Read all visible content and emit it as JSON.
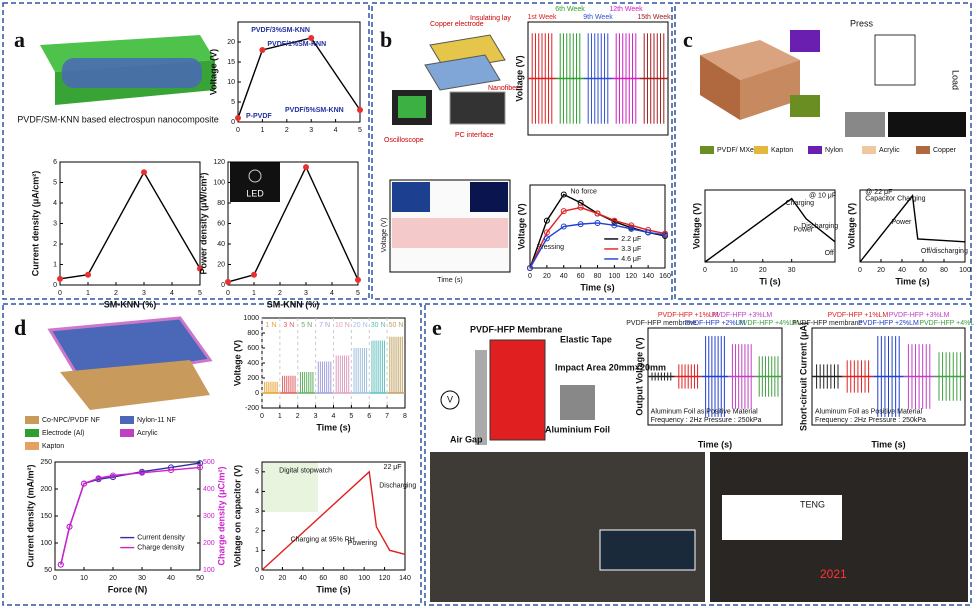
{
  "panels": [
    "a",
    "b",
    "c",
    "d",
    "e"
  ],
  "texts": {
    "a_caption": "PVDF/SM-KNN based electrospun nanocomposite",
    "a_led": "LED",
    "b_copper": "Copper electrode",
    "b_insulating": "Insulating lay",
    "b_nanofibers": "Nanofibers",
    "b_oscilloscope": "Oscilloscope",
    "b_pc": "PC interface",
    "b_signal_ylabel": "Voltage (V)",
    "b_signal_xlabel": "Time (s)",
    "c_legend": [
      "PVDF/ MXene",
      "Kapton",
      "Nylon",
      "Acrylic",
      "Copper"
    ],
    "c_legend_colors": [
      "#6b8e23",
      "#e2b83c",
      "#6a1fb0",
      "#f0c8a0",
      "#b0693f"
    ],
    "c_press": "Press",
    "c_load": "Load",
    "d_legend": [
      "Co-NPC/PVDF NF",
      "Nylon-11 NF",
      "Electrode (Al)",
      "Acrylic",
      "Kapton"
    ],
    "d_legend_colors": [
      "#c89a5b",
      "#4a67b8",
      "#2ca02c",
      "#c040c0",
      "#e8a060"
    ],
    "e_membrane": "PVDF-HFP Membrane",
    "e_tape": "Elastic Tape",
    "e_impact": "Impact Area 20mm×20mm",
    "e_foil": "Aluminium Foil",
    "e_gap": "Air Gap",
    "e_v": "V",
    "e_teng": "TENG",
    "e_display": "2021"
  },
  "chart_data": [
    {
      "type": "line",
      "ylabel": "Voltage (V)",
      "x": [
        0,
        1,
        3,
        5
      ],
      "xlim": [
        0,
        5
      ],
      "xticks": [
        0,
        1,
        2,
        3,
        4,
        5
      ],
      "ylim": [
        0,
        25
      ],
      "yticks": [
        0,
        5,
        10,
        15,
        20
      ],
      "series": [
        {
          "color": "#000000",
          "values": [
            1,
            18,
            21,
            3
          ]
        }
      ],
      "markers": "#e83030",
      "point_labels": [
        "P-PVDF",
        "PVDF/1%SM-KNN",
        "PVDF/3%SM-KNN",
        "PVDF/5%SM-KNN"
      ]
    },
    {
      "type": "line",
      "ylabel": "Current density (μA/cm²)",
      "xlabel": "SM-KNN (%)",
      "x": [
        0,
        1,
        3,
        5
      ],
      "xlim": [
        0,
        5
      ],
      "xticks": [
        0,
        1,
        2,
        3,
        4,
        5
      ],
      "ylim": [
        0,
        6
      ],
      "yticks": [
        0,
        1,
        2,
        3,
        4,
        5,
        6
      ],
      "series": [
        {
          "color": "#000000",
          "values": [
            0.3,
            0.5,
            5.5,
            0.8
          ]
        }
      ],
      "markers": "#e83030"
    },
    {
      "type": "line",
      "ylabel": "Power density (μW/cm²)",
      "xlabel": "SM-KNN (%)",
      "x": [
        0,
        1,
        3,
        5
      ],
      "xlim": [
        0,
        5
      ],
      "xticks": [
        0,
        1,
        2,
        3,
        4,
        5
      ],
      "ylim": [
        0,
        120
      ],
      "yticks": [
        0,
        20,
        40,
        60,
        80,
        100,
        120
      ],
      "series": [
        {
          "color": "#000000",
          "values": [
            3,
            10,
            115,
            5
          ]
        }
      ],
      "markers": "#e83030"
    },
    {
      "type": "spikes",
      "ylabel": "Voltage (V)",
      "ylim": [
        -10,
        10
      ],
      "symmetric": true,
      "categories": [
        "1st Week",
        "6th Week",
        "9th Week",
        "12th Week",
        "15th Week"
      ],
      "values": [
        8,
        8,
        8,
        8,
        8
      ],
      "colors": [
        "#e02020",
        "#2ca02c",
        "#3050d0",
        "#d020c0",
        "#a02020"
      ]
    },
    {
      "type": "line",
      "ylabel": "Voltage (V)",
      "xlabel": "Time (s)",
      "x": [
        0,
        20,
        40,
        60,
        80,
        100,
        120,
        140,
        160
      ],
      "xlim": [
        0,
        160
      ],
      "xticks": [
        0,
        20,
        40,
        60,
        80,
        100,
        120,
        140,
        160
      ],
      "ylim": [
        0,
        7
      ],
      "series": [
        {
          "name": "2.2 μF",
          "color": "#000000",
          "values": [
            0,
            4,
            6.2,
            5.5,
            4.6,
            3.9,
            3.4,
            3.0,
            2.7
          ]
        },
        {
          "name": "3.3 μF",
          "color": "#e02020",
          "values": [
            0,
            3,
            4.8,
            5.1,
            4.6,
            4.0,
            3.6,
            3.2,
            2.9
          ]
        },
        {
          "name": "4.6 μF",
          "color": "#2040d0",
          "values": [
            0,
            2.5,
            3.5,
            3.7,
            3.8,
            3.6,
            3.3,
            3.0,
            2.8
          ]
        }
      ],
      "annotations": [
        "No force",
        "Pressing"
      ]
    },
    {
      "type": "line",
      "ylabel": "Voltage (V)",
      "xlabel": "Ti    (s)",
      "x": [
        0,
        30,
        35,
        45
      ],
      "xlim": [
        0,
        45
      ],
      "xticks": [
        0,
        10,
        20,
        30
      ],
      "ylim": [
        0,
        2.5
      ],
      "series": [
        {
          "color": "#000000",
          "values": [
            0,
            2.2,
            1.5,
            0.7
          ]
        }
      ],
      "annotations": [
        "Charging",
        "Power",
        "Discharging",
        "@ 10 μF",
        "Off"
      ]
    },
    {
      "type": "line",
      "ylabel": "Voltage (V)",
      "xlabel": "Time (s)",
      "x": [
        0,
        50,
        55,
        100
      ],
      "xlim": [
        0,
        100
      ],
      "xticks": [
        0,
        20,
        40,
        60,
        80,
        100
      ],
      "ylim": [
        0,
        2.5
      ],
      "series": [
        {
          "color": "#000000",
          "values": [
            0,
            2.3,
            0.8,
            0.7
          ]
        }
      ],
      "annotations": [
        "Capacitor Charging",
        "Power",
        "Off/discharging",
        "@ 22 μF"
      ]
    },
    {
      "type": "spikes",
      "ylabel": "Voltage (V)",
      "xlabel": "Time (s)",
      "xlim": [
        0,
        8
      ],
      "xticks": [
        0,
        1,
        2,
        3,
        4,
        5,
        6,
        7,
        8
      ],
      "ylim": [
        -200,
        1000
      ],
      "yticks": [
        -200,
        0,
        200,
        400,
        600,
        800,
        1000
      ],
      "categories": [
        "1 N",
        "3 N",
        "5 N",
        "7 N",
        "10 N",
        "20 N",
        "30 N",
        "50 N"
      ],
      "values": [
        150,
        230,
        280,
        420,
        500,
        600,
        700,
        750
      ],
      "colors": [
        "#e8a030",
        "#e06060",
        "#60b060",
        "#a0a0e0",
        "#e0a0c0",
        "#a0c0e0",
        "#60c0c0",
        "#c0a060"
      ]
    },
    {
      "type": "line",
      "ylabel": "Current density (mA/m²)",
      "y2label": "Charge density (μC/m²)",
      "xlabel": "Force (N)",
      "x": [
        2,
        5,
        10,
        15,
        20,
        30,
        40,
        50
      ],
      "xlim": [
        0,
        50
      ],
      "xticks": [
        0,
        10,
        20,
        30,
        40,
        50
      ],
      "ylim": [
        50,
        250
      ],
      "yticks": [
        50,
        100,
        150,
        200,
        250
      ],
      "y2lim": [
        100,
        500
      ],
      "y2ticks": [
        100,
        200,
        300,
        400,
        500
      ],
      "series": [
        {
          "name": "Current density",
          "color": "#3030a0",
          "values": [
            60,
            130,
            210,
            218,
            222,
            232,
            240,
            248
          ]
        },
        {
          "name": "Charge density",
          "color": "#d020d0",
          "axis": "y2",
          "values": [
            120,
            260,
            420,
            440,
            450,
            460,
            470,
            480
          ]
        }
      ]
    },
    {
      "type": "line",
      "ylabel": "Voltage on capacitor (V)",
      "xlabel": "Time (s)",
      "x": [
        0,
        105,
        112,
        125,
        140
      ],
      "xlim": [
        0,
        140
      ],
      "xticks": [
        0,
        20,
        40,
        60,
        80,
        100,
        120,
        140
      ],
      "ylim": [
        0,
        5.5
      ],
      "yticks": [
        0,
        1,
        2,
        3,
        4,
        5
      ],
      "series": [
        {
          "color": "#e02020",
          "values": [
            0,
            5,
            2.2,
            1,
            0.8
          ]
        }
      ],
      "annotations": [
        "Digital stopwatch",
        "Charging at 95% RH",
        "Powering",
        "Discharging",
        "22 μF"
      ]
    },
    {
      "type": "spikes",
      "ylabel": "Output Voltage (V)",
      "xlabel": "Time (s)",
      "ylim": [
        -12,
        12
      ],
      "symmetric": true,
      "categories": [
        "PVDF-HFP membrane",
        "PVDF-HFP +1%LM",
        "PVDF-HFP +2%LM",
        "PVDF-HFP +3%LM",
        "PVDF-HFP +4%LM"
      ],
      "values": [
        1,
        3,
        10,
        8,
        5
      ],
      "colors": [
        "#222222",
        "#e02020",
        "#2040d0",
        "#c040c0",
        "#40a040"
      ],
      "annotations": [
        "Aluminum Foil as Positive Material",
        "Frequency : 2Hz  Pressure : 250kPa"
      ]
    },
    {
      "type": "spikes",
      "ylabel": "Short-circuit Current (μA)",
      "xlabel": "Time (s)",
      "ylim": [
        -12,
        12
      ],
      "symmetric": true,
      "categories": [
        "PVDF-HFP membrane",
        "PVDF-HFP +1%LM",
        "PVDF-HFP +2%LM",
        "PVDF-HFP +3%LM",
        "PVDF-HFP +4%LM"
      ],
      "values": [
        3,
        4,
        10,
        8,
        6
      ],
      "colors": [
        "#222222",
        "#e02020",
        "#2040d0",
        "#c040c0",
        "#40a040"
      ],
      "annotations": [
        "Aluminum Foil as Positive Material",
        "Frequency : 2Hz  Pressure : 250kPa"
      ]
    }
  ]
}
